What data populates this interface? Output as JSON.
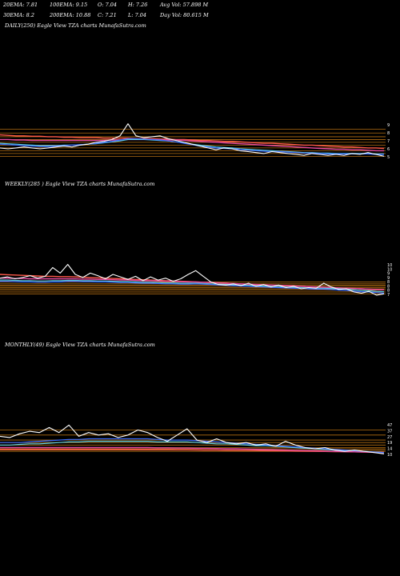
{
  "header": {
    "row1": [
      "20EMA: 7.81",
      "100EMA: 9.15",
      "O: 7.04",
      "H: 7.26",
      "Avg Vol: 57.898 M"
    ],
    "row2": [
      "30EMA: 8.2",
      "200EMA: 10.88",
      "C: 7.21",
      "L: 7.04",
      "Day Vol: 80.615 M"
    ]
  },
  "panels": [
    {
      "label": "DAILY(250) Eagle   View  TZA charts MunafaSutra.com"
    },
    {
      "label": "WEEKLY(285                            ) Eagle   View  TZA charts MunafaSutra.com"
    },
    {
      "label": "MONTHLY(49) Eagle   View  TZA charts MunafaSutra.com"
    }
  ],
  "colors": {
    "background": "#000000",
    "price": "#ffffff",
    "ema20": "#3a6bff",
    "ema30": "#5fd0e0",
    "ema100": "#e64aa0",
    "ema200": "#ff5a4a",
    "levels": "#c87a14"
  },
  "chart_data": [
    {
      "type": "line",
      "timeframe": "DAILY",
      "price": [
        6.6,
        6.5,
        6.6,
        6.7,
        6.6,
        6.5,
        6.6,
        6.7,
        6.8,
        6.7,
        6.9,
        7.0,
        7.2,
        7.3,
        7.5,
        7.9,
        9.2,
        7.9,
        7.7,
        7.8,
        7.9,
        7.6,
        7.4,
        7.2,
        7.0,
        6.8,
        6.6,
        6.4,
        6.6,
        6.5,
        6.3,
        6.2,
        6.1,
        6.0,
        6.2,
        6.1,
        6.0,
        5.9,
        5.8,
        6.0,
        5.9,
        5.8,
        5.9,
        5.8,
        6.0,
        5.9,
        6.1,
        5.9,
        5.7
      ],
      "ema20": [
        7.0,
        6.95,
        6.9,
        6.85,
        6.8,
        6.75,
        6.75,
        6.8,
        6.85,
        6.9,
        6.95,
        7.0,
        7.1,
        7.2,
        7.3,
        7.45,
        7.6,
        7.6,
        7.55,
        7.5,
        7.45,
        7.35,
        7.25,
        7.1,
        6.95,
        6.8,
        6.7,
        6.6,
        6.55,
        6.5,
        6.45,
        6.35,
        6.3,
        6.25,
        6.2,
        6.2,
        6.15,
        6.1,
        6.05,
        6.05,
        6.0,
        5.95,
        5.95,
        5.95,
        5.95,
        5.95,
        5.95,
        5.9,
        5.9
      ],
      "ema30": [
        7.1,
        7.05,
        7.0,
        6.95,
        6.9,
        6.85,
        6.85,
        6.85,
        6.9,
        6.9,
        6.95,
        7.0,
        7.05,
        7.15,
        7.25,
        7.35,
        7.5,
        7.5,
        7.5,
        7.45,
        7.4,
        7.35,
        7.25,
        7.15,
        7.0,
        6.9,
        6.8,
        6.7,
        6.65,
        6.6,
        6.5,
        6.45,
        6.4,
        6.35,
        6.3,
        6.25,
        6.2,
        6.15,
        6.1,
        6.1,
        6.05,
        6.05,
        6.0,
        6.0,
        6.0,
        6.0,
        6.0,
        5.95,
        5.95
      ],
      "ema100": [
        7.5,
        7.5,
        7.45,
        7.45,
        7.4,
        7.4,
        7.4,
        7.4,
        7.4,
        7.4,
        7.4,
        7.4,
        7.4,
        7.4,
        7.45,
        7.45,
        7.5,
        7.5,
        7.5,
        7.5,
        7.5,
        7.45,
        7.45,
        7.4,
        7.35,
        7.3,
        7.25,
        7.2,
        7.15,
        7.1,
        7.05,
        7.0,
        6.95,
        6.9,
        6.85,
        6.8,
        6.75,
        6.7,
        6.65,
        6.6,
        6.55,
        6.5,
        6.45,
        6.45,
        6.4,
        6.4,
        6.35,
        6.3,
        6.3
      ],
      "ema200": [
        8.0,
        7.95,
        7.9,
        7.9,
        7.85,
        7.85,
        7.8,
        7.8,
        7.75,
        7.75,
        7.7,
        7.7,
        7.7,
        7.65,
        7.65,
        7.65,
        7.65,
        7.6,
        7.6,
        7.6,
        7.55,
        7.55,
        7.5,
        7.5,
        7.45,
        7.4,
        7.4,
        7.35,
        7.3,
        7.3,
        7.25,
        7.2,
        7.15,
        7.1,
        7.1,
        7.05,
        7.0,
        6.95,
        6.9,
        6.9,
        6.85,
        6.8,
        6.75,
        6.7,
        6.7,
        6.65,
        6.6,
        6.6,
        6.55
      ],
      "levels": [
        8.6,
        8.2,
        7.8,
        7.5,
        7.2,
        6.9,
        6.6,
        6.3,
        6.0,
        5.7
      ],
      "ylim": [
        5.3,
        9.6
      ],
      "ticks": [
        "9",
        "8",
        "7",
        "6",
        "5"
      ]
    },
    {
      "type": "line",
      "timeframe": "WEEKLY",
      "price": [
        10.6,
        10.8,
        10.5,
        10.7,
        11.0,
        10.6,
        10.9,
        12.3,
        11.4,
        12.8,
        11.2,
        10.7,
        11.4,
        11.0,
        10.5,
        11.2,
        10.8,
        10.4,
        10.9,
        10.2,
        10.8,
        10.3,
        10.6,
        10.1,
        10.5,
        11.2,
        11.8,
        10.9,
        10.0,
        9.6,
        9.5,
        9.7,
        9.4,
        9.8,
        9.3,
        9.6,
        9.2,
        9.5,
        9.1,
        9.3,
        8.9,
        9.1,
        9.0,
        9.8,
        9.2,
        8.8,
        8.9,
        8.4,
        8.2,
        8.5,
        7.9,
        8.1
      ],
      "ema20": [
        10.1,
        10.1,
        10.05,
        10.0,
        10.0,
        9.95,
        9.95,
        10.0,
        10.0,
        10.1,
        10.1,
        10.05,
        10.05,
        10.0,
        10.0,
        9.95,
        9.9,
        9.9,
        9.85,
        9.8,
        9.8,
        9.75,
        9.7,
        9.7,
        9.65,
        9.65,
        9.7,
        9.65,
        9.6,
        9.5,
        9.45,
        9.4,
        9.35,
        9.3,
        9.25,
        9.2,
        9.15,
        9.1,
        9.05,
        9.0,
        8.95,
        8.9,
        8.85,
        8.85,
        8.8,
        8.7,
        8.65,
        8.55,
        8.45,
        8.4,
        8.3,
        8.2
      ],
      "ema30": [
        10.3,
        10.3,
        10.25,
        10.2,
        10.2,
        10.15,
        10.15,
        10.2,
        10.2,
        10.25,
        10.25,
        10.2,
        10.2,
        10.15,
        10.15,
        10.1,
        10.05,
        10.05,
        10.0,
        9.95,
        9.95,
        9.9,
        9.85,
        9.85,
        9.8,
        9.8,
        9.8,
        9.75,
        9.7,
        9.65,
        9.6,
        9.55,
        9.5,
        9.45,
        9.4,
        9.35,
        9.3,
        9.25,
        9.2,
        9.15,
        9.1,
        9.05,
        9.0,
        9.0,
        8.95,
        8.9,
        8.85,
        8.75,
        8.65,
        8.6,
        8.5,
        8.45
      ],
      "ema100": [
        10.6,
        10.6,
        10.55,
        10.55,
        10.5,
        10.5,
        10.5,
        10.5,
        10.5,
        10.5,
        10.5,
        10.45,
        10.45,
        10.4,
        10.4,
        10.35,
        10.3,
        10.3,
        10.25,
        10.2,
        10.2,
        10.15,
        10.1,
        10.1,
        10.05,
        10.0,
        10.0,
        9.95,
        9.9,
        9.85,
        9.8,
        9.75,
        9.7,
        9.65,
        9.6,
        9.55,
        9.5,
        9.45,
        9.4,
        9.35,
        9.3,
        9.25,
        9.2,
        9.15,
        9.1,
        9.05,
        9.0,
        8.95,
        8.9,
        8.85,
        8.8,
        8.75
      ],
      "ema200": [
        11.2,
        11.15,
        11.1,
        11.05,
        11.0,
        10.95,
        10.9,
        10.9,
        10.85,
        10.85,
        10.8,
        10.75,
        10.7,
        10.65,
        10.6,
        10.55,
        10.5,
        10.45,
        10.4,
        10.35,
        10.3,
        10.25,
        10.2,
        10.15,
        10.1,
        10.05,
        10.0,
        9.95,
        9.9,
        9.85,
        9.8,
        9.75,
        9.7,
        9.65,
        9.6,
        9.55,
        9.5,
        9.45,
        9.4,
        9.35,
        9.3,
        9.25,
        9.2,
        9.15,
        9.1,
        9.05,
        9.0,
        8.95,
        8.9,
        8.85,
        8.8,
        8.75
      ],
      "levels": [
        10.0,
        9.7,
        9.5,
        9.3,
        9.1,
        8.9,
        8.7,
        8.4,
        8.1
      ],
      "ylim": [
        7.5,
        13.5
      ],
      "ticks": [
        "10",
        "10",
        "9",
        "9",
        "8",
        "8",
        "8",
        "7"
      ]
    },
    {
      "type": "line",
      "timeframe": "MONTHLY",
      "price": [
        27,
        26,
        29,
        31,
        30,
        34,
        30,
        36,
        27,
        30,
        28,
        29,
        26,
        28,
        32,
        30,
        26,
        23,
        28,
        33,
        24,
        22,
        25,
        22,
        21,
        22,
        20,
        21,
        19,
        23,
        20,
        18,
        17,
        18,
        16,
        15,
        16,
        15,
        14,
        13
      ],
      "ema20": [
        22,
        22,
        22,
        22.5,
        23,
        23.5,
        24,
        24.5,
        24.5,
        25,
        25,
        25,
        25,
        25,
        25,
        25,
        24.5,
        24,
        24,
        24,
        23.5,
        23,
        22.5,
        22,
        21.5,
        21,
        20.5,
        20,
        19.5,
        19,
        18.5,
        18,
        17.5,
        17,
        16.5,
        16,
        15.5,
        15,
        14.5,
        14
      ],
      "ema30": [
        20,
        20,
        20.5,
        21,
        21,
        21.5,
        22,
        22.5,
        22.5,
        23,
        23,
        23,
        23,
        23,
        23,
        23,
        22.5,
        22.5,
        22.5,
        22.5,
        22,
        21.5,
        21,
        21,
        20.5,
        20,
        19.5,
        19.5,
        19,
        18.5,
        18,
        17.5,
        17,
        16.5,
        16,
        15.5,
        15.5,
        15,
        14.5,
        14
      ],
      "ema100": [
        18,
        18,
        18,
        18,
        18,
        18,
        18,
        18,
        18,
        18,
        18,
        18,
        18,
        18,
        18,
        18,
        17.8,
        17.8,
        17.6,
        17.6,
        17.4,
        17.4,
        17.2,
        17,
        17,
        16.8,
        16.6,
        16.4,
        16.2,
        16,
        15.8,
        15.6,
        15.4,
        15.2,
        15,
        14.8,
        14.6,
        14.4,
        14.2,
        14
      ],
      "ema200": [
        16.5,
        16.5,
        16.5,
        16.5,
        16.5,
        16.5,
        16.5,
        16.5,
        16.5,
        16.5,
        16.5,
        16.5,
        16.5,
        16.5,
        16.4,
        16.4,
        16.3,
        16.3,
        16.2,
        16.2,
        16.1,
        16,
        16,
        15.9,
        15.8,
        15.7,
        15.6,
        15.5,
        15.4,
        15.3,
        15.2,
        15.1,
        15,
        14.9,
        14.8,
        14.7,
        14.6,
        14.5,
        14.4,
        14.3
      ],
      "levels": [
        32,
        28,
        24,
        22,
        20,
        18,
        17,
        16,
        15
      ],
      "ylim": [
        10,
        40
      ],
      "ticks": [
        "47",
        "37",
        "27",
        "19",
        "14",
        "10"
      ]
    }
  ]
}
